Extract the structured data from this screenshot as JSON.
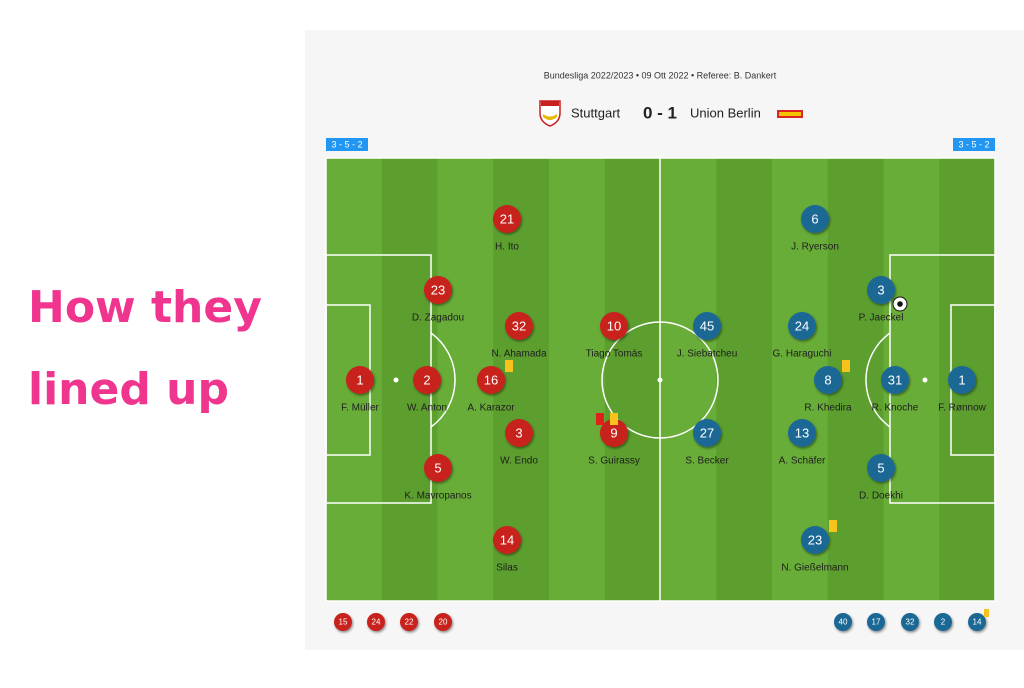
{
  "heading": [
    "How they",
    "lined up"
  ],
  "match": {
    "info": "Bundesliga 2022/2023 • 09 Ott 2022 • Referee: B. Dankert",
    "home": "Stuttgart",
    "score": "0 - 1",
    "away": "Union Berlin"
  },
  "home": {
    "formation": "3 - 5 - 2",
    "color": "#c8201f",
    "players": [
      {
        "number": 1,
        "name": "F. Müller"
      },
      {
        "number": 2,
        "name": "W. Anton"
      },
      {
        "number": 23,
        "name": "D. Zagadou"
      },
      {
        "number": 5,
        "name": "K. Mavropanos"
      },
      {
        "number": 21,
        "name": "H. Ito"
      },
      {
        "number": 32,
        "name": "N. Ahamada"
      },
      {
        "number": 16,
        "name": "A. Karazor",
        "cards": [
          "yellow"
        ]
      },
      {
        "number": 3,
        "name": "W. Endo"
      },
      {
        "number": 14,
        "name": "Silas"
      },
      {
        "number": 10,
        "name": "Tiago Tomás"
      },
      {
        "number": 9,
        "name": "S. Guirassy",
        "cards": [
          "red",
          "yellow"
        ]
      }
    ],
    "bench": [
      {
        "number": 15
      },
      {
        "number": 24
      },
      {
        "number": 22
      },
      {
        "number": 20
      }
    ]
  },
  "away": {
    "formation": "3 - 5 - 2",
    "color": "#1b6895",
    "players": [
      {
        "number": 6,
        "name": "J. Ryerson"
      },
      {
        "number": 3,
        "name": "P. Jaeckel",
        "goal": true
      },
      {
        "number": 45,
        "name": "J. Siebatcheu"
      },
      {
        "number": 24,
        "name": "G. Haraguchi"
      },
      {
        "number": 8,
        "name": "R. Khedira",
        "cards": [
          "yellow"
        ]
      },
      {
        "number": 31,
        "name": "R. Knoche"
      },
      {
        "number": 1,
        "name": "F. Rønnow"
      },
      {
        "number": 27,
        "name": "S. Becker"
      },
      {
        "number": 13,
        "name": "A. Schäfer"
      },
      {
        "number": 5,
        "name": "D. Doekhi"
      },
      {
        "number": 23,
        "name": "N. Gießelmann",
        "cards": [
          "yellow"
        ]
      }
    ],
    "bench": [
      {
        "number": 40
      },
      {
        "number": 17
      },
      {
        "number": 32
      },
      {
        "number": 2
      },
      {
        "number": 14,
        "cards": [
          "yellow"
        ]
      }
    ]
  }
}
